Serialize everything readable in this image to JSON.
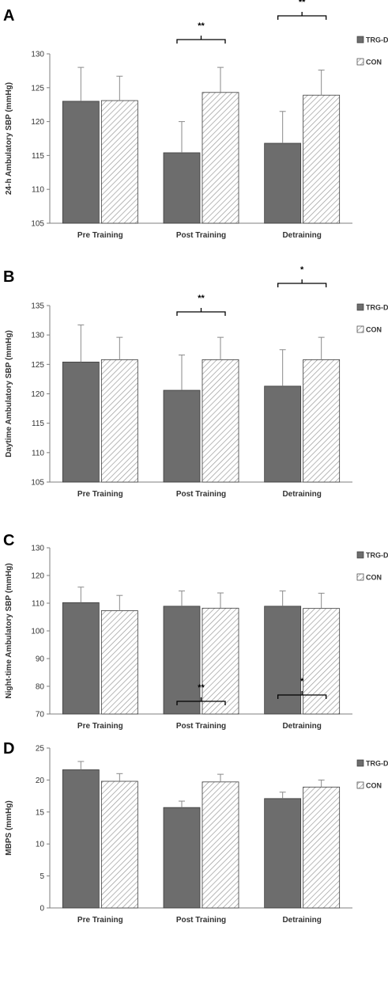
{
  "chart_data": [
    {
      "type": "bar",
      "panel": "A",
      "ylabel": "24-h Ambulatory SBP (mmHg)",
      "ylim": [
        105,
        130
      ],
      "yticks": [
        105,
        110,
        115,
        120,
        125,
        130
      ],
      "categories": [
        "Pre Training",
        "Post Training",
        "Detraining"
      ],
      "series": [
        {
          "name": "TRG-DT",
          "values": [
            123.0,
            115.4,
            116.8
          ],
          "errors": [
            5.0,
            4.6,
            4.7
          ]
        },
        {
          "name": "CON",
          "values": [
            123.1,
            124.3,
            123.9
          ],
          "errors": [
            3.6,
            3.7,
            3.7
          ]
        }
      ],
      "significance": [
        {
          "category": "Post Training",
          "label": "**"
        },
        {
          "category": "Detraining",
          "label": "**"
        }
      ],
      "legend": "top-right",
      "grid": false
    },
    {
      "type": "bar",
      "panel": "B",
      "ylabel": "Daytime Ambulatory SBP (mmHg)",
      "ylim": [
        105,
        135
      ],
      "yticks": [
        105,
        110,
        115,
        120,
        125,
        130,
        135
      ],
      "categories": [
        "Pre Training",
        "Post Training",
        "Detraining"
      ],
      "series": [
        {
          "name": "TRG-DT",
          "values": [
            125.4,
            120.6,
            121.3
          ],
          "errors": [
            6.3,
            6.0,
            6.2
          ]
        },
        {
          "name": "CON",
          "values": [
            125.8,
            125.8,
            125.8
          ],
          "errors": [
            3.8,
            3.8,
            3.8
          ]
        }
      ],
      "significance": [
        {
          "category": "Post Training",
          "label": "**"
        },
        {
          "category": "Detraining",
          "label": "*"
        }
      ],
      "legend": "top-right",
      "grid": false
    },
    {
      "type": "bar",
      "panel": "C",
      "ylabel": "Night-time Ambulatory SBP (mmHg)",
      "ylim": [
        70,
        130
      ],
      "yticks": [
        70,
        80,
        90,
        100,
        110,
        120,
        130
      ],
      "categories": [
        "Pre Training",
        "Post Training",
        "Detraining"
      ],
      "series": [
        {
          "name": "TRG-DT",
          "values": [
            110.2,
            108.9,
            108.9
          ],
          "errors": [
            5.6,
            5.5,
            5.5
          ]
        },
        {
          "name": "CON",
          "values": [
            107.3,
            108.2,
            108.1
          ],
          "errors": [
            5.5,
            5.5,
            5.5
          ]
        }
      ],
      "significance": [],
      "legend": "top-right",
      "grid": false
    },
    {
      "type": "bar",
      "panel": "D",
      "ylabel": "MBPS (mmHg)",
      "ylim": [
        0,
        25
      ],
      "yticks": [
        0,
        5,
        10,
        15,
        20,
        25
      ],
      "categories": [
        "Pre Training",
        "Post Training",
        "Detraining"
      ],
      "series": [
        {
          "name": "TRG-DT",
          "values": [
            21.6,
            15.7,
            17.1
          ],
          "errors": [
            1.3,
            1.0,
            1.0
          ]
        },
        {
          "name": "CON",
          "values": [
            19.8,
            19.7,
            18.9
          ],
          "errors": [
            1.2,
            1.2,
            1.1
          ]
        }
      ],
      "significance": [
        {
          "category": "Post Training",
          "label": "**"
        },
        {
          "category": "Detraining",
          "label": "*"
        }
      ],
      "legend": "top-right",
      "grid": false
    }
  ],
  "colors": {
    "trg_fill": "#6d6d6d",
    "con_fill": "#ffffff",
    "con_hatch": "#9a9a9a",
    "bar_stroke": "#3a3a3a",
    "axis": "#7f7f7f",
    "error_bar": "#8a8a8a",
    "bracket": "#000000"
  }
}
